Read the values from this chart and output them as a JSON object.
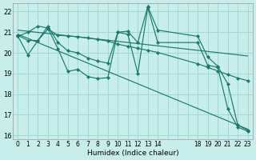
{
  "xlabel": "Humidex (Indice chaleur)",
  "bg_color": "#c8eeeb",
  "grid_color": "#a0d8d4",
  "line_color": "#1a7a6e",
  "xlim": [
    -0.5,
    23.5
  ],
  "ylim": [
    15.8,
    22.4
  ],
  "yticks": [
    16,
    17,
    18,
    19,
    20,
    21,
    22
  ],
  "xticks_all": [
    0,
    1,
    2,
    3,
    4,
    5,
    6,
    7,
    8,
    9,
    10,
    11,
    12,
    13,
    14,
    15,
    16,
    17,
    18,
    19,
    20,
    21,
    22,
    23
  ],
  "xticks_labeled": [
    0,
    1,
    2,
    3,
    4,
    5,
    6,
    7,
    8,
    9,
    10,
    11,
    12,
    13,
    14,
    18,
    19,
    20,
    21,
    22,
    23
  ],
  "series1_x": [
    0,
    1,
    2,
    3,
    4,
    5,
    6,
    7,
    8,
    9,
    10,
    11,
    12,
    13,
    14,
    18,
    19,
    20,
    21,
    22,
    23
  ],
  "series1_y": [
    20.8,
    21.0,
    21.3,
    21.2,
    20.2,
    19.1,
    19.2,
    18.85,
    18.75,
    18.8,
    21.0,
    20.9,
    19.0,
    22.2,
    20.5,
    20.5,
    19.4,
    19.3,
    17.3,
    16.4,
    16.2
  ],
  "series2_x": [
    0,
    1,
    2,
    3,
    4,
    5,
    6,
    7,
    8,
    9,
    10,
    11,
    12,
    13,
    14,
    18,
    19,
    20,
    21,
    22,
    23
  ],
  "series2_y": [
    20.85,
    20.6,
    20.6,
    21.15,
    20.85,
    20.82,
    20.78,
    20.72,
    20.65,
    20.57,
    20.42,
    20.32,
    20.22,
    20.12,
    20.02,
    19.47,
    19.3,
    19.12,
    18.95,
    18.78,
    18.65
  ],
  "series3_x": [
    0,
    1,
    2,
    3,
    4,
    5,
    6,
    7,
    8,
    9,
    10,
    11,
    12,
    13,
    14,
    18,
    19,
    20,
    21,
    22,
    23
  ],
  "series3_y": [
    20.8,
    19.9,
    20.6,
    21.3,
    20.5,
    20.1,
    20.0,
    19.75,
    19.6,
    19.5,
    21.0,
    21.05,
    20.5,
    22.25,
    21.1,
    20.8,
    19.8,
    19.35,
    18.5,
    16.5,
    16.25
  ],
  "trend1_x": [
    0,
    23
  ],
  "trend1_y": [
    21.1,
    19.85
  ],
  "trend2_x": [
    0,
    23
  ],
  "trend2_y": [
    20.9,
    16.3
  ],
  "xlabel_fontsize": 6.5,
  "tick_fontsize": 5.5,
  "ytick_fontsize": 6.0
}
